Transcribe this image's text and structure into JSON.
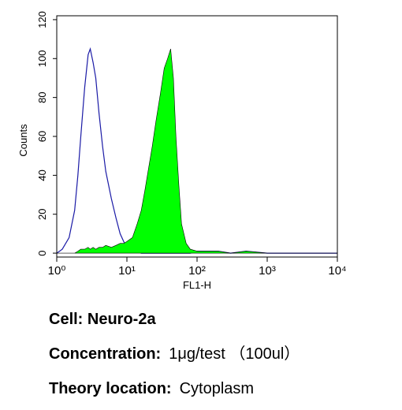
{
  "chart_data": {
    "type": "histogram",
    "x_label": "FL1-H",
    "y_label": "Counts",
    "log_x": true,
    "xlim": [
      1,
      10000
    ],
    "ylim": [
      -2,
      122
    ],
    "xticks": [
      {
        "value": 1,
        "label": "10⁰"
      },
      {
        "value": 10,
        "label": "10¹"
      },
      {
        "value": 100,
        "label": "10²"
      },
      {
        "value": 1000,
        "label": "10³"
      },
      {
        "value": 10000,
        "label": "10⁴"
      }
    ],
    "yticks": [
      0,
      20,
      40,
      60,
      80,
      100,
      120
    ],
    "x": [
      1,
      1.2,
      1.5,
      1.8,
      2,
      2.2,
      2.5,
      2.8,
      3,
      3.3,
      3.6,
      4,
      4.5,
      5,
      6,
      7,
      8,
      9,
      10,
      12,
      14,
      16,
      18,
      20,
      23,
      26,
      30,
      34,
      38,
      42,
      46,
      50,
      55,
      60,
      70,
      80,
      100,
      150,
      200,
      300,
      500,
      1000,
      2000,
      5000,
      10000
    ],
    "series": [
      {
        "color": "#1a1aa6",
        "filled": false,
        "values": [
          0,
          2,
          8,
          22,
          40,
          60,
          85,
          102,
          105,
          98,
          90,
          72,
          55,
          42,
          28,
          18,
          10,
          6,
          3,
          2,
          1,
          0,
          0,
          0,
          0,
          0,
          0,
          0,
          0,
          0,
          0,
          0,
          0,
          0,
          0,
          0,
          1,
          1,
          1,
          0,
          1,
          0,
          0,
          0,
          0
        ]
      },
      {
        "color": "#00ff00",
        "filled": true,
        "values": [
          0,
          0,
          0,
          0,
          1,
          2,
          2,
          3,
          2,
          3,
          2,
          3,
          3,
          4,
          3,
          4,
          5,
          5,
          6,
          8,
          15,
          22,
          32,
          42,
          55,
          68,
          82,
          95,
          100,
          105,
          90,
          60,
          35,
          15,
          5,
          2,
          1,
          1,
          1,
          0,
          1,
          0,
          0,
          0,
          0
        ]
      }
    ]
  },
  "notes": [
    {
      "label": "Cell: Neuro-2a"
    },
    {
      "label": "Concentration:",
      "value": "1μg/test （100ul）"
    },
    {
      "label": "Theory location:",
      "value": "Cytoplasm"
    }
  ]
}
